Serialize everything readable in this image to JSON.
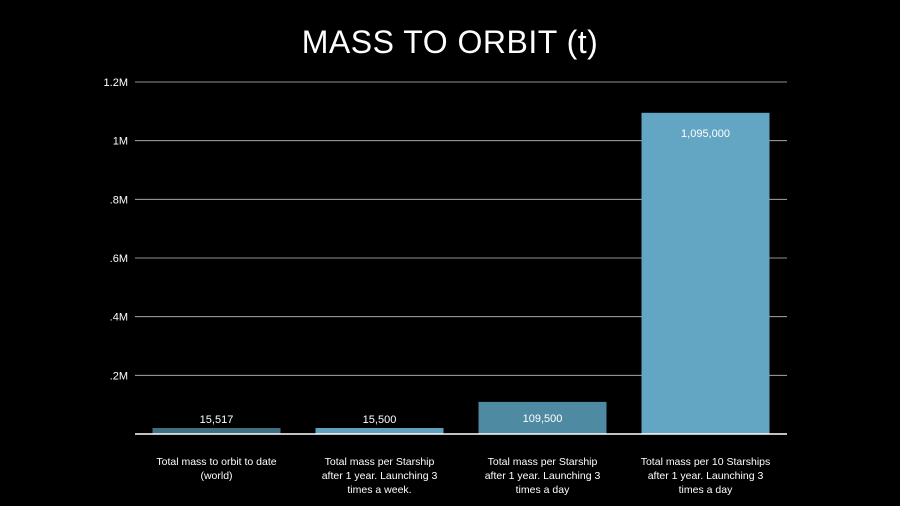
{
  "chart_data": {
    "type": "bar",
    "title": "MASS TO ORBIT (t)",
    "xlabel": "",
    "ylabel": "",
    "ylim": [
      0,
      1200000
    ],
    "yticks": [
      {
        "value": 200000,
        "label": ".2M"
      },
      {
        "value": 400000,
        "label": ".4M"
      },
      {
        "value": 600000,
        "label": ".6M"
      },
      {
        "value": 800000,
        "label": ".8M"
      },
      {
        "value": 1000000,
        "label": "1M"
      },
      {
        "value": 1200000,
        "label": "1.2M"
      }
    ],
    "grid": true,
    "categories": [
      [
        "Total mass to orbit to date",
        "(world)"
      ],
      [
        "Total mass per Starship",
        "after 1 year. Launching 3",
        "times a week."
      ],
      [
        "Total mass per Starship",
        "after 1 year. Launching 3",
        "times a day"
      ],
      [
        "Total mass per 10 Starships",
        "after 1 year. Launching 3",
        "times a day"
      ]
    ],
    "values": [
      15517,
      15500,
      109500,
      1095000
    ],
    "value_labels": [
      "15,517",
      "15,500",
      "109,500",
      "1,095,000"
    ],
    "bar_colors": [
      "#3f7082",
      "#5fa0be",
      "#4e8aa2",
      "#62a6c4"
    ]
  }
}
